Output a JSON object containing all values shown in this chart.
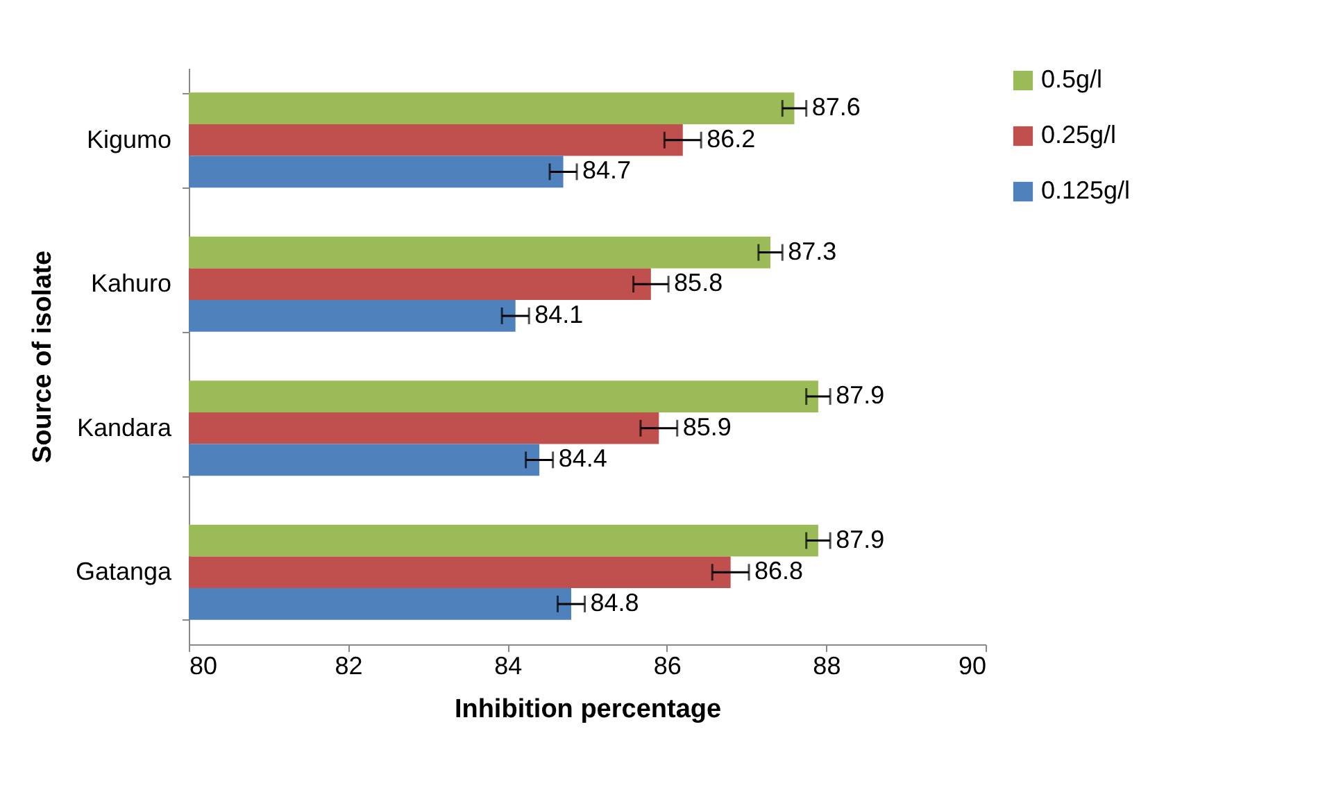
{
  "chart_data": {
    "type": "bar",
    "orientation": "horizontal",
    "xlabel": "Inhibition percentage",
    "ylabel": "Source of isolate",
    "categories": [
      "Kigumo",
      "Kahuro",
      "Kandara",
      "Gatanga"
    ],
    "series": [
      {
        "name": "0.5g/l",
        "color": "#9bbb59",
        "values": [
          87.6,
          87.3,
          87.9,
          87.9
        ],
        "errors": [
          0.15,
          0.15,
          0.15,
          0.15
        ]
      },
      {
        "name": "0.25g/l",
        "color": "#c0504d",
        "values": [
          86.2,
          85.8,
          85.9,
          86.8
        ],
        "errors": [
          0.23,
          0.22,
          0.23,
          0.23
        ]
      },
      {
        "name": "0.125g/l",
        "color": "#4f81bd",
        "values": [
          84.7,
          84.1,
          84.4,
          84.8
        ],
        "errors": [
          0.17,
          0.17,
          0.17,
          0.17
        ]
      }
    ],
    "xlim": [
      80,
      90
    ],
    "xticks": [
      80,
      82,
      84,
      86,
      88,
      90
    ],
    "data_labels": true,
    "legend": "right",
    "grid": false
  }
}
